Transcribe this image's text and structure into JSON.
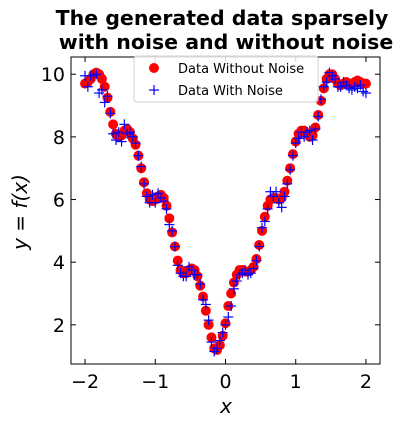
{
  "chart_data": {
    "type": "scatter",
    "title_lines": [
      "The generated data sparsely",
      "with noise and without noise"
    ],
    "xlabel": "x",
    "ylabel": "y = f(x)",
    "xlim": [
      -2.2,
      2.2
    ],
    "ylim": [
      0.75,
      10.55
    ],
    "xticks": [
      -2,
      -1,
      0,
      1,
      2
    ],
    "yticks": [
      2,
      4,
      6,
      8,
      10
    ],
    "grid": false,
    "legend_position": "upper center",
    "series": [
      {
        "name": "Data Without Noise",
        "marker": "circle",
        "color": "#ff0000",
        "x": [
          -2.0,
          -1.96,
          -1.92,
          -1.88,
          -1.84,
          -1.8,
          -1.76,
          -1.72,
          -1.68,
          -1.64,
          -1.6,
          -1.56,
          -1.52,
          -1.48,
          -1.44,
          -1.4,
          -1.36,
          -1.32,
          -1.28,
          -1.24,
          -1.2,
          -1.16,
          -1.12,
          -1.08,
          -1.04,
          -1.0,
          -0.96,
          -0.92,
          -0.88,
          -0.84,
          -0.8,
          -0.76,
          -0.72,
          -0.68,
          -0.64,
          -0.6,
          -0.56,
          -0.52,
          -0.48,
          -0.44,
          -0.4,
          -0.36,
          -0.32,
          -0.28,
          -0.24,
          -0.2,
          -0.16,
          -0.12,
          -0.08,
          -0.04,
          0.0,
          0.04,
          0.08,
          0.12,
          0.16,
          0.2,
          0.24,
          0.28,
          0.32,
          0.36,
          0.4,
          0.44,
          0.48,
          0.52,
          0.56,
          0.6,
          0.64,
          0.68,
          0.72,
          0.76,
          0.8,
          0.84,
          0.88,
          0.92,
          0.96,
          1.0,
          1.04,
          1.08,
          1.12,
          1.16,
          1.2,
          1.24,
          1.28,
          1.32,
          1.36,
          1.4,
          1.44,
          1.48,
          1.52,
          1.56,
          1.6,
          1.64,
          1.68,
          1.72,
          1.76,
          1.8,
          1.84,
          1.88,
          1.92,
          1.96,
          2.0
        ],
        "y": [
          9.7,
          9.75,
          9.85,
          10.0,
          10.05,
          10.0,
          9.85,
          9.6,
          9.25,
          8.8,
          8.4,
          8.1,
          8.0,
          8.05,
          8.2,
          8.25,
          8.15,
          7.95,
          7.75,
          7.4,
          7.0,
          6.55,
          6.2,
          6.0,
          5.95,
          6.0,
          6.1,
          6.15,
          6.05,
          5.8,
          5.4,
          4.95,
          4.5,
          4.05,
          3.75,
          3.65,
          3.65,
          3.75,
          3.8,
          3.75,
          3.55,
          3.25,
          2.9,
          2.45,
          2.0,
          1.6,
          1.25,
          1.2,
          1.35,
          1.65,
          2.05,
          2.6,
          3.0,
          3.35,
          3.6,
          3.75,
          3.75,
          3.7,
          3.7,
          3.75,
          3.85,
          4.1,
          4.55,
          5.0,
          5.45,
          5.8,
          6.0,
          6.05,
          6.05,
          6.0,
          6.05,
          6.25,
          6.6,
          7.0,
          7.45,
          7.85,
          8.1,
          8.2,
          8.2,
          8.1,
          8.0,
          8.05,
          8.3,
          8.7,
          9.15,
          9.55,
          9.85,
          10.0,
          10.0,
          9.85,
          9.7,
          9.65,
          9.7,
          9.75,
          9.7,
          9.7,
          9.75,
          9.8,
          9.75,
          9.7,
          9.7
        ]
      },
      {
        "name": "Data With Noise",
        "marker": "plus",
        "color": "#0000ff",
        "x": [
          -2.0,
          -1.96,
          -1.92,
          -1.88,
          -1.84,
          -1.8,
          -1.76,
          -1.72,
          -1.68,
          -1.64,
          -1.6,
          -1.56,
          -1.52,
          -1.48,
          -1.44,
          -1.4,
          -1.36,
          -1.32,
          -1.28,
          -1.24,
          -1.2,
          -1.16,
          -1.12,
          -1.08,
          -1.04,
          -1.0,
          -0.96,
          -0.92,
          -0.88,
          -0.84,
          -0.8,
          -0.76,
          -0.72,
          -0.68,
          -0.64,
          -0.6,
          -0.56,
          -0.52,
          -0.48,
          -0.44,
          -0.4,
          -0.36,
          -0.32,
          -0.28,
          -0.24,
          -0.2,
          -0.16,
          -0.12,
          -0.08,
          -0.04,
          0.0,
          0.04,
          0.08,
          0.12,
          0.16,
          0.2,
          0.24,
          0.28,
          0.32,
          0.36,
          0.4,
          0.44,
          0.48,
          0.52,
          0.56,
          0.6,
          0.64,
          0.68,
          0.72,
          0.76,
          0.8,
          0.84,
          0.88,
          0.92,
          0.96,
          1.0,
          1.04,
          1.08,
          1.12,
          1.16,
          1.2,
          1.24,
          1.28,
          1.32,
          1.36,
          1.4,
          1.44,
          1.48,
          1.52,
          1.56,
          1.6,
          1.64,
          1.68,
          1.72,
          1.76,
          1.8,
          1.84,
          1.88,
          1.92,
          1.96,
          2.0
        ],
        "y": [
          9.95,
          9.6,
          9.95,
          9.95,
          10.0,
          9.4,
          9.5,
          9.1,
          9.3,
          8.75,
          8.1,
          7.9,
          8.15,
          7.85,
          8.4,
          8.1,
          8.15,
          8.0,
          7.8,
          7.4,
          7.05,
          6.5,
          6.1,
          5.9,
          6.15,
          5.9,
          6.2,
          6.05,
          5.95,
          5.7,
          5.2,
          5.0,
          4.5,
          3.9,
          3.65,
          3.55,
          3.55,
          3.85,
          3.75,
          3.6,
          3.6,
          3.3,
          2.8,
          2.65,
          2.15,
          1.45,
          1.15,
          1.25,
          1.5,
          1.75,
          2.0,
          2.25,
          2.6,
          3.15,
          3.4,
          3.6,
          3.65,
          3.75,
          3.6,
          3.65,
          3.8,
          4.05,
          4.5,
          5.1,
          5.3,
          5.7,
          6.25,
          6.1,
          6.25,
          5.9,
          5.75,
          6.1,
          6.5,
          6.95,
          7.4,
          7.8,
          7.95,
          8.15,
          8.0,
          8.15,
          8.2,
          7.9,
          8.25,
          8.65,
          9.2,
          9.6,
          9.75,
          10.05,
          9.95,
          9.85,
          9.6,
          9.6,
          9.75,
          9.65,
          9.55,
          9.5,
          9.6,
          9.55,
          9.65,
          9.45,
          9.4
        ]
      }
    ]
  }
}
